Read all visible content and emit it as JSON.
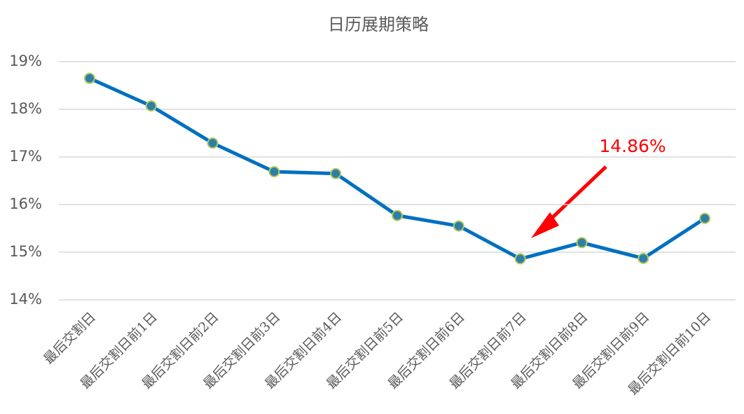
{
  "chart_data": {
    "type": "line",
    "title": "日历展期策略",
    "categories": [
      "最后交割日",
      "最后交割日前1日",
      "最后交割日前2日",
      "最后交割日前3日",
      "最后交割日前4日",
      "最后交割日前5日",
      "最后交割日前6日",
      "最后交割日前7日",
      "最后交割日前8日",
      "最后交割日前9日",
      "最后交割日前10日"
    ],
    "values": [
      18.65,
      18.07,
      17.29,
      16.69,
      16.65,
      15.77,
      15.55,
      14.86,
      15.2,
      14.87,
      15.71
    ],
    "color": "#0070c0",
    "marker_color": "#2e7fa8",
    "marker_edge_color": "#b5c95a",
    "annotation": "14.86%",
    "annotation_color": "#ff0000",
    "ylim": [
      14,
      19
    ],
    "yticks": [
      {
        "value": 14,
        "label": "14%"
      },
      {
        "value": 15,
        "label": "15%"
      },
      {
        "value": 16,
        "label": "16%"
      },
      {
        "value": 17,
        "label": "17%"
      },
      {
        "value": 18,
        "label": "18%"
      },
      {
        "value": 19,
        "label": "19%"
      }
    ],
    "grid": true
  }
}
